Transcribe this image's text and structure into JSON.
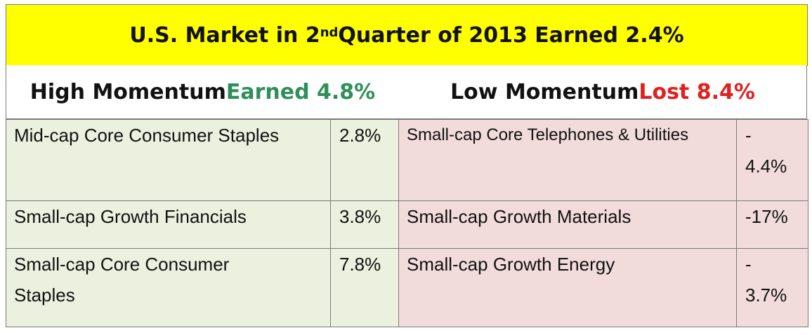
{
  "title": {
    "prefix": "U.S. Market  in 2",
    "superscript": "nd",
    "suffix": " Quarter of 2013 Earned 2.4%"
  },
  "high": {
    "label": "High Momentum ",
    "result": "Earned 4.8%"
  },
  "low": {
    "label": "Low Momentum ",
    "result": "Lost 8.4%"
  },
  "rows": [
    {
      "high_name": "Mid-cap Core Consumer Staples",
      "high_value": "2.8%",
      "low_name": "Small-cap Core Telephones & Utilities",
      "low_value_line1": "-",
      "low_value_line2": "4.4%"
    },
    {
      "high_name": "Small-cap Growth Financials",
      "high_value": "3.8%",
      "low_name": "Small-cap Growth Materials",
      "low_value_line1": "-17%",
      "low_value_line2": ""
    },
    {
      "high_name_line1": "Small-cap Core Consumer",
      "high_name_line2": "Staples",
      "high_value": "7.8%",
      "low_name": "Small-cap Growth Energy",
      "low_value_line1": "-",
      "low_value_line2": "3.7%"
    }
  ],
  "colors": {
    "title_bg": "#ffff00",
    "earned": "#2f8f5b",
    "lost": "#e0211d",
    "high_cell_bg": "#ebf1de",
    "low_cell_bg": "#f2dcdb"
  }
}
